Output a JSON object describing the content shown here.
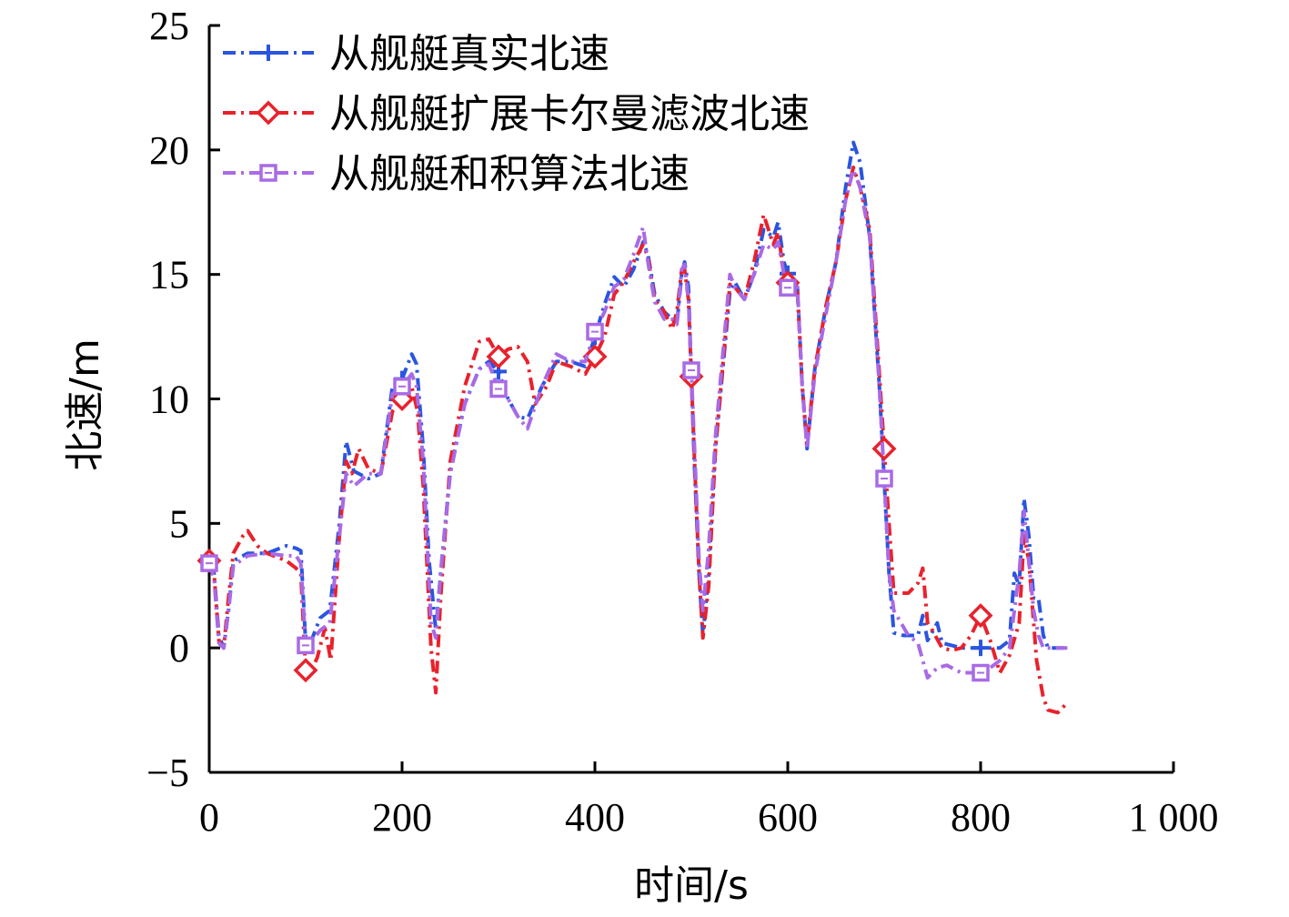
{
  "chart_data": {
    "type": "line",
    "xlabel": "时间/s",
    "ylabel": "北速/m",
    "xlim": [
      0,
      1000
    ],
    "ylim": [
      -5,
      25
    ],
    "xticks": [
      0,
      200,
      400,
      600,
      800,
      1000
    ],
    "xtick_labels": [
      "0",
      "200",
      "400",
      "600",
      "800",
      "1 000"
    ],
    "yticks": [
      -5,
      0,
      5,
      10,
      15,
      20,
      25
    ],
    "ytick_labels": [
      "−5",
      "0",
      "5",
      "10",
      "15",
      "20",
      "25"
    ],
    "grid": false,
    "legend_position": "top-left",
    "series": [
      {
        "name": "从舰艇真实北速",
        "color": "#2a55e0",
        "marker": "plus",
        "points": [
          [
            0,
            3.4
          ],
          [
            5,
            3
          ],
          [
            10,
            0.5
          ],
          [
            15,
            0
          ],
          [
            20,
            1.5
          ],
          [
            25,
            3.5
          ],
          [
            40,
            3.8
          ],
          [
            60,
            3.8
          ],
          [
            80,
            4.1
          ],
          [
            90,
            4
          ],
          [
            95,
            3.9
          ],
          [
            100,
            0.2
          ],
          [
            105,
            0.2
          ],
          [
            115,
            1.2
          ],
          [
            125,
            1.5
          ],
          [
            135,
            5
          ],
          [
            142,
            8.3
          ],
          [
            150,
            7.1
          ],
          [
            165,
            6.8
          ],
          [
            178,
            7
          ],
          [
            190,
            10.5
          ],
          [
            200,
            10.8
          ],
          [
            210,
            11.8
          ],
          [
            215,
            11.4
          ],
          [
            222,
            8
          ],
          [
            228,
            3.5
          ],
          [
            235,
            0.7
          ],
          [
            240,
            3
          ],
          [
            250,
            7.1
          ],
          [
            265,
            9.8
          ],
          [
            280,
            11.2
          ],
          [
            290,
            11.5
          ],
          [
            300,
            11.1
          ],
          [
            310,
            10
          ],
          [
            320,
            9.3
          ],
          [
            330,
            9.2
          ],
          [
            345,
            10.5
          ],
          [
            360,
            11.5
          ],
          [
            375,
            11.5
          ],
          [
            390,
            11.3
          ],
          [
            400,
            12.5
          ],
          [
            410,
            13.8
          ],
          [
            420,
            14.9
          ],
          [
            430,
            14.5
          ],
          [
            440,
            15.2
          ],
          [
            450,
            16.3
          ],
          [
            455,
            15.8
          ],
          [
            462,
            14.2
          ],
          [
            472,
            13.5
          ],
          [
            480,
            13.2
          ],
          [
            485,
            13
          ],
          [
            490,
            15
          ],
          [
            493,
            15.5
          ],
          [
            497,
            14.5
          ],
          [
            503,
            7.5
          ],
          [
            508,
            3
          ],
          [
            512,
            0.5
          ],
          [
            518,
            3
          ],
          [
            525,
            8
          ],
          [
            540,
            14.3
          ],
          [
            545,
            14.7
          ],
          [
            555,
            14
          ],
          [
            565,
            15
          ],
          [
            575,
            16.8
          ],
          [
            585,
            16.5
          ],
          [
            590,
            17.1
          ],
          [
            596,
            15.5
          ],
          [
            602,
            14.8
          ],
          [
            610,
            14.5
          ],
          [
            615,
            10.5
          ],
          [
            620,
            8
          ],
          [
            628,
            11.2
          ],
          [
            640,
            13.8
          ],
          [
            650,
            15.5
          ],
          [
            660,
            18.5
          ],
          [
            668,
            20.3
          ],
          [
            675,
            19.5
          ],
          [
            685,
            16.5
          ],
          [
            695,
            10.5
          ],
          [
            705,
            3
          ],
          [
            710,
            0.6
          ],
          [
            720,
            0.5
          ],
          [
            735,
            0.5
          ],
          [
            740,
            1.3
          ],
          [
            745,
            0.3
          ],
          [
            755,
            1
          ],
          [
            760,
            0.2
          ],
          [
            780,
            0
          ],
          [
            800,
            0
          ],
          [
            820,
            0
          ],
          [
            830,
            0.3
          ],
          [
            835,
            3
          ],
          [
            840,
            2.5
          ],
          [
            845,
            6
          ],
          [
            850,
            4.5
          ],
          [
            855,
            2
          ],
          [
            860,
            2
          ],
          [
            865,
            0.5
          ],
          [
            870,
            0
          ],
          [
            890,
            0
          ]
        ]
      },
      {
        "name": "从舰艇扩展卡尔曼滤波北速",
        "color": "#e8222c",
        "marker": "diamond",
        "points": [
          [
            0,
            3.5
          ],
          [
            5,
            3
          ],
          [
            10,
            0.3
          ],
          [
            15,
            0
          ],
          [
            20,
            2
          ],
          [
            25,
            3.8
          ],
          [
            35,
            4.5
          ],
          [
            40,
            4.7
          ],
          [
            50,
            4.1
          ],
          [
            60,
            3.8
          ],
          [
            80,
            3.5
          ],
          [
            90,
            3.2
          ],
          [
            95,
            3
          ],
          [
            100,
            -0.9
          ],
          [
            105,
            -1
          ],
          [
            112,
            -0.4
          ],
          [
            120,
            0.8
          ],
          [
            126,
            -0.5
          ],
          [
            135,
            4.5
          ],
          [
            142,
            7.5
          ],
          [
            148,
            7
          ],
          [
            155,
            8
          ],
          [
            165,
            7.2
          ],
          [
            178,
            7
          ],
          [
            190,
            9.5
          ],
          [
            200,
            10
          ],
          [
            210,
            10.5
          ],
          [
            216,
            9.5
          ],
          [
            222,
            6.5
          ],
          [
            230,
            0
          ],
          [
            235,
            -1.8
          ],
          [
            240,
            2
          ],
          [
            250,
            7.5
          ],
          [
            265,
            10.5
          ],
          [
            280,
            12.3
          ],
          [
            290,
            12.4
          ],
          [
            300,
            11.7
          ],
          [
            310,
            12
          ],
          [
            320,
            12.1
          ],
          [
            330,
            11.5
          ],
          [
            338,
            9.8
          ],
          [
            350,
            10.5
          ],
          [
            360,
            11.5
          ],
          [
            375,
            11.3
          ],
          [
            390,
            11
          ],
          [
            400,
            11.7
          ],
          [
            410,
            12.5
          ],
          [
            420,
            14.2
          ],
          [
            430,
            14.7
          ],
          [
            440,
            15.5
          ],
          [
            450,
            16.2
          ],
          [
            455,
            15.7
          ],
          [
            462,
            14
          ],
          [
            472,
            13.5
          ],
          [
            480,
            12.8
          ],
          [
            485,
            13.5
          ],
          [
            490,
            15.2
          ],
          [
            493,
            15.2
          ],
          [
            497,
            14
          ],
          [
            503,
            7.8
          ],
          [
            508,
            3
          ],
          [
            512,
            0.4
          ],
          [
            518,
            2.5
          ],
          [
            525,
            8
          ],
          [
            540,
            14.6
          ],
          [
            545,
            14.5
          ],
          [
            555,
            14
          ],
          [
            565,
            15.5
          ],
          [
            575,
            17.4
          ],
          [
            585,
            16.2
          ],
          [
            590,
            16.7
          ],
          [
            596,
            15
          ],
          [
            602,
            14.5
          ],
          [
            610,
            14.3
          ],
          [
            615,
            10.5
          ],
          [
            620,
            8.2
          ],
          [
            628,
            11.2
          ],
          [
            640,
            13.8
          ],
          [
            650,
            15.5
          ],
          [
            660,
            18
          ],
          [
            668,
            19.3
          ],
          [
            675,
            18.5
          ],
          [
            685,
            16.8
          ],
          [
            695,
            11
          ],
          [
            705,
            5
          ],
          [
            710,
            2.2
          ],
          [
            725,
            2.2
          ],
          [
            735,
            2.6
          ],
          [
            740,
            3.2
          ],
          [
            745,
            1
          ],
          [
            750,
            0.7
          ],
          [
            760,
            0
          ],
          [
            770,
            -0.1
          ],
          [
            780,
            0
          ],
          [
            790,
            0.5
          ],
          [
            800,
            1.3
          ],
          [
            810,
            0.3
          ],
          [
            820,
            -1
          ],
          [
            830,
            -0.3
          ],
          [
            840,
            1
          ],
          [
            845,
            4.5
          ],
          [
            850,
            3.5
          ],
          [
            858,
            -0.5
          ],
          [
            865,
            -2
          ],
          [
            870,
            -2.5
          ],
          [
            880,
            -2.6
          ],
          [
            890,
            -2.2
          ]
        ]
      },
      {
        "name": "从舰艇和积算法北速",
        "color": "#a96ae6",
        "marker": "square",
        "points": [
          [
            0,
            3.4
          ],
          [
            5,
            2.8
          ],
          [
            10,
            0.2
          ],
          [
            15,
            0
          ],
          [
            20,
            1.5
          ],
          [
            25,
            3.3
          ],
          [
            40,
            3.7
          ],
          [
            60,
            3.8
          ],
          [
            80,
            3.7
          ],
          [
            90,
            3.7
          ],
          [
            95,
            3.4
          ],
          [
            100,
            0.1
          ],
          [
            105,
            0.2
          ],
          [
            115,
            0.7
          ],
          [
            125,
            1
          ],
          [
            135,
            4.5
          ],
          [
            142,
            7
          ],
          [
            150,
            6.5
          ],
          [
            165,
            7
          ],
          [
            178,
            7
          ],
          [
            190,
            10.2
          ],
          [
            200,
            10.5
          ],
          [
            210,
            11
          ],
          [
            215,
            10.5
          ],
          [
            222,
            7.5
          ],
          [
            230,
            1
          ],
          [
            235,
            0.4
          ],
          [
            240,
            3
          ],
          [
            250,
            7
          ],
          [
            265,
            9.8
          ],
          [
            280,
            11.2
          ],
          [
            290,
            11.4
          ],
          [
            300,
            10.4
          ],
          [
            310,
            10
          ],
          [
            320,
            9.3
          ],
          [
            330,
            8.8
          ],
          [
            345,
            10.5
          ],
          [
            360,
            11.8
          ],
          [
            375,
            11.5
          ],
          [
            390,
            11.5
          ],
          [
            400,
            12.7
          ],
          [
            410,
            13.5
          ],
          [
            420,
            14.5
          ],
          [
            430,
            14.8
          ],
          [
            440,
            15.8
          ],
          [
            450,
            16.9
          ],
          [
            455,
            15.5
          ],
          [
            462,
            13.9
          ],
          [
            472,
            13.2
          ],
          [
            480,
            13.2
          ],
          [
            485,
            13
          ],
          [
            490,
            15.2
          ],
          [
            493,
            15.4
          ],
          [
            497,
            14
          ],
          [
            503,
            8.3
          ],
          [
            508,
            3.5
          ],
          [
            512,
            1.5
          ],
          [
            518,
            4
          ],
          [
            525,
            8.5
          ],
          [
            540,
            15
          ],
          [
            545,
            14.5
          ],
          [
            555,
            14
          ],
          [
            565,
            15
          ],
          [
            575,
            16.2
          ],
          [
            585,
            16
          ],
          [
            590,
            16.3
          ],
          [
            596,
            15
          ],
          [
            602,
            14.2
          ],
          [
            610,
            14.5
          ],
          [
            615,
            10.5
          ],
          [
            620,
            8
          ],
          [
            628,
            11
          ],
          [
            640,
            13.5
          ],
          [
            650,
            15.5
          ],
          [
            660,
            18
          ],
          [
            668,
            19.2
          ],
          [
            675,
            18.5
          ],
          [
            685,
            16.5
          ],
          [
            695,
            10.5
          ],
          [
            700,
            6.8
          ],
          [
            705,
            3
          ],
          [
            710,
            1.5
          ],
          [
            725,
            0.5
          ],
          [
            735,
            0.2
          ],
          [
            740,
            -0.5
          ],
          [
            745,
            -1.2
          ],
          [
            755,
            -0.8
          ],
          [
            765,
            -0.7
          ],
          [
            780,
            -1
          ],
          [
            790,
            -1
          ],
          [
            800,
            -1
          ],
          [
            810,
            -0.8
          ],
          [
            820,
            -0.5
          ],
          [
            830,
            0
          ],
          [
            840,
            3
          ],
          [
            845,
            5.5
          ],
          [
            850,
            3.5
          ],
          [
            855,
            1.5
          ],
          [
            860,
            0.5
          ],
          [
            865,
            0
          ],
          [
            870,
            0
          ],
          [
            890,
            0
          ]
        ]
      }
    ]
  }
}
